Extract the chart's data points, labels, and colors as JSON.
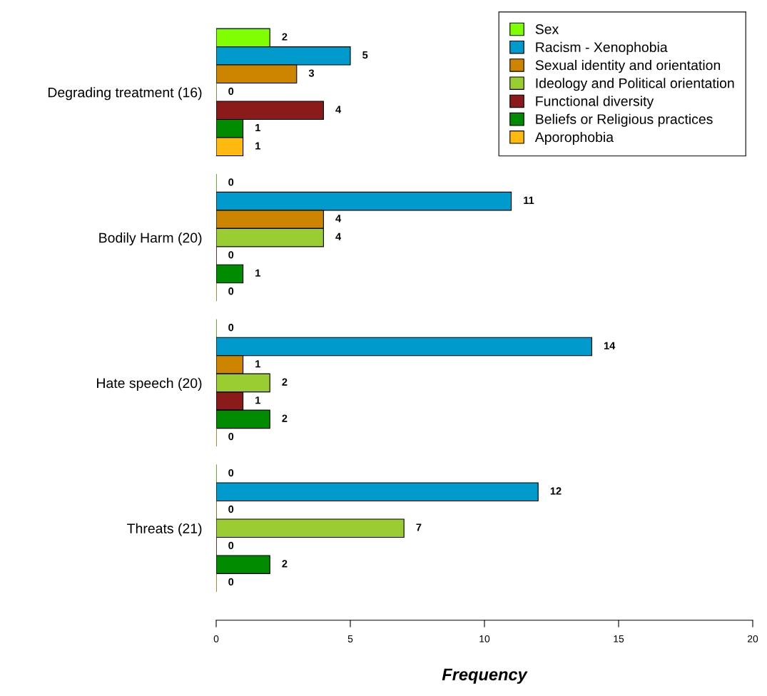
{
  "chart_data": {
    "type": "bar",
    "orientation": "horizontal",
    "xlabel": "Frequency",
    "categories": [
      "Degrading treatment (16)",
      "Bodily Harm (20)",
      "Hate speech (20)",
      "Threats (21)"
    ],
    "series": [
      {
        "name": "Sex",
        "color": "#7fff00",
        "values": [
          2,
          0,
          0,
          0
        ]
      },
      {
        "name": "Racism - Xenophobia",
        "color": "#009acd",
        "values": [
          5,
          11,
          14,
          12
        ]
      },
      {
        "name": "Sexual identity and orientation",
        "color": "#cd8500",
        "values": [
          3,
          4,
          1,
          0
        ]
      },
      {
        "name": "Ideology and Political orientation",
        "color": "#9acd32",
        "values": [
          0,
          4,
          2,
          7
        ]
      },
      {
        "name": "Functional diversity",
        "color": "#8b1a1a",
        "values": [
          4,
          0,
          1,
          0
        ]
      },
      {
        "name": "Beliefs or Religious practices",
        "color": "#008b00",
        "values": [
          1,
          1,
          2,
          2
        ]
      },
      {
        "name": "Aporophobia",
        "color": "#ffb90f",
        "values": [
          1,
          0,
          0,
          0
        ]
      }
    ],
    "xlim": [
      0,
      20
    ],
    "xticks": [
      0,
      5,
      10,
      15,
      20
    ],
    "data_labels": true,
    "legend": "top right",
    "grid": false
  }
}
